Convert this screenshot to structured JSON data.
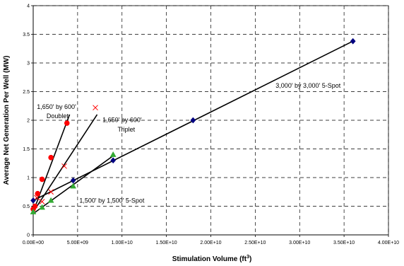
{
  "chart_data": {
    "type": "scatter",
    "xlabel": "Stimulation Volume (ft",
    "xlabel_superscript": "3",
    "xlabel_suffix": ")",
    "ylabel": "Average Net Generation Per Well (MW)",
    "xlim": [
      0,
      40000000000.0
    ],
    "ylim": [
      0,
      4
    ],
    "x_ticks": [
      {
        "value": 0,
        "label": "0.00E+00"
      },
      {
        "value": 5000000000.0,
        "label": "5.00E+09"
      },
      {
        "value": 10000000000.0,
        "label": "1.00E+10"
      },
      {
        "value": 15000000000.0,
        "label": "1.50E+10"
      },
      {
        "value": 20000000000.0,
        "label": "2.00E+10"
      },
      {
        "value": 25000000000.0,
        "label": "2.50E+10"
      },
      {
        "value": 30000000000.0,
        "label": "3.00E+10"
      },
      {
        "value": 35000000000.0,
        "label": "3.50E+10"
      },
      {
        "value": 40000000000.0,
        "label": "4.00E+10"
      }
    ],
    "y_ticks": [
      {
        "value": 0,
        "label": "0"
      },
      {
        "value": 0.5,
        "label": "0.5"
      },
      {
        "value": 1,
        "label": "1"
      },
      {
        "value": 1.5,
        "label": "1.5"
      },
      {
        "value": 2,
        "label": "2"
      },
      {
        "value": 2.5,
        "label": "2.5"
      },
      {
        "value": 3,
        "label": "3"
      },
      {
        "value": 3.5,
        "label": "3.5"
      },
      {
        "value": 4,
        "label": "4"
      }
    ],
    "grid": true,
    "grid_style": "dashed",
    "series": [
      {
        "marker": "circle",
        "color": "#ff0000",
        "x": [
          0.0,
          200000000.0,
          500000000.0,
          1000000000.0,
          2000000000.0,
          3800000000.0
        ],
        "y": [
          0.45,
          0.5,
          0.72,
          0.97,
          1.35,
          1.95
        ],
        "fit": {
          "x": [
            0.0,
            4100000000.0
          ],
          "y": [
            0.4,
            2.1
          ]
        }
      },
      {
        "marker": "x",
        "color": "#ff0000",
        "x": [
          400000000.0,
          1000000000.0,
          2000000000.0,
          3500000000.0,
          7000000000.0
        ],
        "y": [
          0.65,
          0.58,
          0.75,
          1.2,
          2.22
        ],
        "fit": {
          "x": [
            0.0,
            7200000000.0
          ],
          "y": [
            0.4,
            2.1
          ]
        }
      },
      {
        "marker": "triangle",
        "color": "#33aa33",
        "x": [
          0.0,
          1000000000.0,
          2000000000.0,
          4500000000.0,
          9000000000.0
        ],
        "y": [
          0.4,
          0.48,
          0.6,
          0.85,
          1.4
        ],
        "fit": {
          "x": [
            0.0,
            9000000000.0
          ],
          "y": [
            0.37,
            1.38
          ]
        }
      },
      {
        "marker": "diamond",
        "color": "#000080",
        "x": [
          0.0,
          4500000000.0,
          9000000000.0,
          18000000000.0,
          36000000000.0
        ],
        "y": [
          0.6,
          0.95,
          1.3,
          2.0,
          3.38
        ],
        "fit": {
          "x": [
            0.0,
            36000000000.0
          ],
          "y": [
            0.6,
            3.38
          ]
        }
      }
    ],
    "annotations": [
      {
        "text": "1,650' by 600'",
        "x": 420000000.0,
        "y": 2.2
      },
      {
        "text": "Doublet",
        "x": 1500000000.0,
        "y": 2.04
      },
      {
        "text": "1,650' by 600'",
        "x": 7800000000.0,
        "y": 1.97
      },
      {
        "text": "Triplet",
        "x": 9500000000.0,
        "y": 1.8
      },
      {
        "text": "1,500' by 1,500' 5-Spot",
        "x": 5200000000.0,
        "y": 0.56
      },
      {
        "text": "3,000' by 3,000' 5-Spot",
        "x": 27300000000.0,
        "y": 2.57
      }
    ]
  }
}
